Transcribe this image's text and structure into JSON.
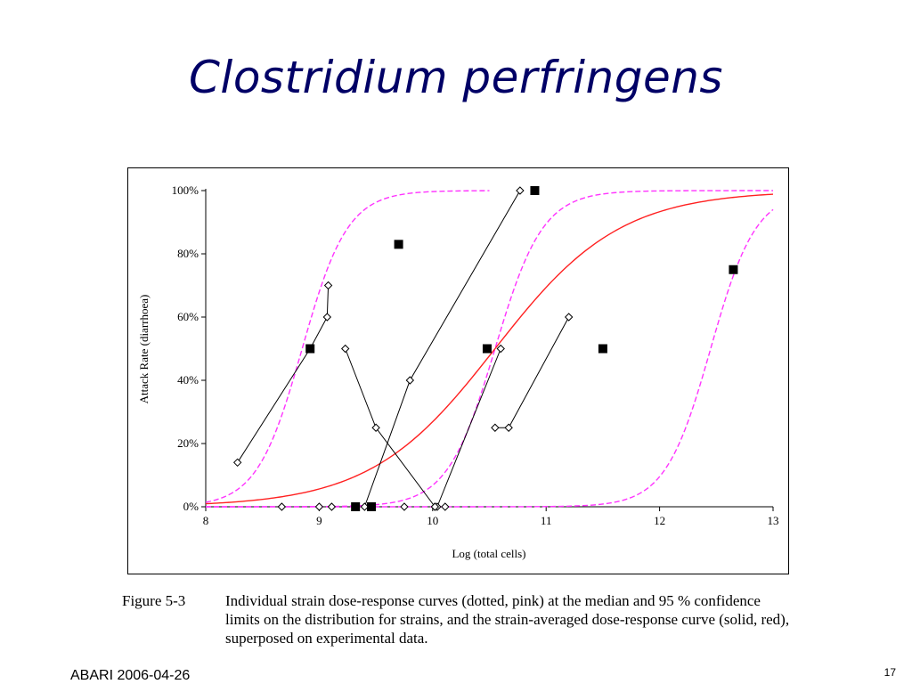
{
  "slide": {
    "title": "Clostridium perfringens",
    "footer_left": "ABARI 2006-04-26",
    "page_number": "17"
  },
  "figure": {
    "caption_label": "Figure 5-3",
    "caption_text": "Individual strain dose-response curves (dotted, pink) at the median and 95 % confidence limits on the distribution for strains, and the strain-averaged dose-response curve (solid, red), superposed on experimental data."
  },
  "chart_data": {
    "type": "scatter",
    "xlabel": "Log (total cells)",
    "ylabel": "Attack Rate (diarrhoea)",
    "xlim": [
      8,
      13
    ],
    "ylim": [
      0,
      1
    ],
    "x_ticks": [
      8,
      9,
      10,
      11,
      12,
      13
    ],
    "x_tick_labels": [
      "8",
      "9",
      "10",
      "11",
      "12",
      "13"
    ],
    "y_ticks": [
      0,
      0.2,
      0.4,
      0.6,
      0.8,
      1.0
    ],
    "y_tick_labels": [
      "0%",
      "20%",
      "40%",
      "60%",
      "80%",
      "100%"
    ],
    "grid": false,
    "legend": "none",
    "colors": {
      "averaged_curve": "#ff2020",
      "strain_curves": "#ff33ff",
      "data": "#000000"
    },
    "strain_curves": [
      {
        "mid": 8.85,
        "scale": 0.2,
        "x_range": [
          8.0,
          10.5
        ]
      },
      {
        "mid": 10.55,
        "scale": 0.21,
        "x_range": [
          8.0,
          13.0
        ]
      },
      {
        "mid": 12.45,
        "scale": 0.2,
        "x_range": [
          8.0,
          13.0
        ]
      }
    ],
    "averaged_curve": {
      "mid": 10.55,
      "scale": 0.55,
      "x_range": [
        8.0,
        13.0
      ]
    },
    "strain_series": [
      {
        "x": [
          8.28,
          8.92,
          9.07,
          9.08
        ],
        "y": [
          0.14,
          0.5,
          0.6,
          0.7
        ]
      },
      {
        "x": [
          9.23,
          9.5,
          10.02
        ],
        "y": [
          0.5,
          0.25,
          0.0
        ]
      },
      {
        "x": [
          9.4,
          9.8,
          10.77
        ],
        "y": [
          0.0,
          0.4,
          1.0
        ]
      },
      {
        "x": [
          10.04,
          10.6
        ],
        "y": [
          0.0,
          0.5
        ]
      },
      {
        "x": [
          10.55,
          10.67,
          11.2
        ],
        "y": [
          0.25,
          0.25,
          0.6
        ]
      }
    ],
    "zero_points": {
      "x": [
        8.67,
        9.0,
        9.11,
        9.75,
        10.02,
        10.11
      ],
      "y": [
        0,
        0,
        0,
        0,
        0,
        0
      ]
    },
    "experimental_data": {
      "x": [
        8.92,
        9.32,
        9.46,
        9.7,
        10.48,
        10.9,
        11.5,
        12.65
      ],
      "y": [
        0.5,
        0.0,
        0.0,
        0.83,
        0.5,
        1.0,
        0.5,
        0.75
      ]
    }
  }
}
